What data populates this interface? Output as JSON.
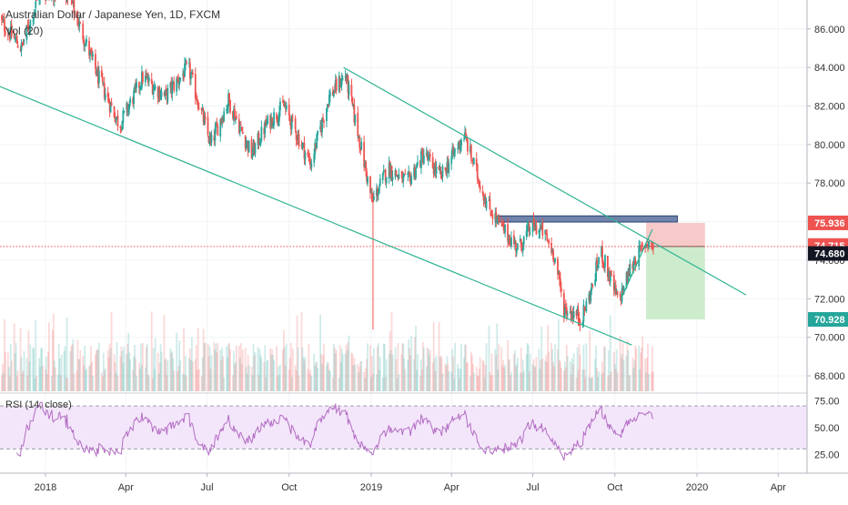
{
  "chart_title": "Australian Dollar / Japanese Yen, 1D, FXCM",
  "volume_label": "Vol (20)",
  "rsi_label": "RSI (14, close)",
  "colors": {
    "up": "#26a69a",
    "down": "#ef5350",
    "trendline": "#2eb392",
    "resistance_box": "#3f5a8f",
    "rsi_line": "#b36cc4",
    "rsi_band": "#f3e6fa",
    "stop_zone": "#f7c9c9",
    "target_zone": "#cdeccd",
    "current_price_line": "#ef5350"
  },
  "chart_data": {
    "type": "candlestick",
    "x_axis": {
      "ticks": [
        "2018",
        "Apr",
        "Jul",
        "Oct",
        "2019",
        "Apr",
        "Jul",
        "Oct",
        "2020",
        "Apr"
      ],
      "tick_dates": [
        "2018-01-01",
        "2018-04-01",
        "2018-07-01",
        "2018-10-01",
        "2019-01-01",
        "2019-04-01",
        "2019-07-01",
        "2019-10-01",
        "2020-01-01",
        "2020-04-01"
      ]
    },
    "y_axis": {
      "ticks": [
        "68.000",
        "70.000",
        "72.000",
        "74.000",
        "76.000",
        "78.000",
        "80.000",
        "82.000",
        "84.000",
        "86.000"
      ],
      "range": [
        67.2,
        87.5
      ]
    },
    "price_path": [
      {
        "date": "2017-11-10",
        "price": 86.5
      },
      {
        "date": "2017-12-05",
        "price": 85.0
      },
      {
        "date": "2017-12-25",
        "price": 87.8
      },
      {
        "date": "2018-01-25",
        "price": 88.0
      },
      {
        "date": "2018-03-01",
        "price": 83.5
      },
      {
        "date": "2018-03-25",
        "price": 81.0
      },
      {
        "date": "2018-04-20",
        "price": 83.5
      },
      {
        "date": "2018-05-15",
        "price": 82.5
      },
      {
        "date": "2018-06-10",
        "price": 84.0
      },
      {
        "date": "2018-07-05",
        "price": 80.0
      },
      {
        "date": "2018-07-25",
        "price": 82.3
      },
      {
        "date": "2018-08-20",
        "price": 79.5
      },
      {
        "date": "2018-09-05",
        "price": 81.0
      },
      {
        "date": "2018-09-25",
        "price": 82.0
      },
      {
        "date": "2018-10-25",
        "price": 79.0
      },
      {
        "date": "2018-11-15",
        "price": 82.5
      },
      {
        "date": "2018-12-03",
        "price": 83.6
      },
      {
        "date": "2018-12-20",
        "price": 80.0
      },
      {
        "date": "2019-01-02",
        "price": 77.0
      },
      {
        "date": "2019-01-20",
        "price": 78.8
      },
      {
        "date": "2019-02-10",
        "price": 78.0
      },
      {
        "date": "2019-03-01",
        "price": 79.5
      },
      {
        "date": "2019-03-20",
        "price": 78.3
      },
      {
        "date": "2019-04-15",
        "price": 80.5
      },
      {
        "date": "2019-05-10",
        "price": 77.0
      },
      {
        "date": "2019-05-25",
        "price": 75.8
      },
      {
        "date": "2019-06-15",
        "price": 74.6
      },
      {
        "date": "2019-06-30",
        "price": 75.8
      },
      {
        "date": "2019-07-12",
        "price": 75.5
      },
      {
        "date": "2019-07-25",
        "price": 74.3
      },
      {
        "date": "2019-08-05",
        "price": 71.5
      },
      {
        "date": "2019-08-25",
        "price": 71.0
      },
      {
        "date": "2019-09-05",
        "price": 72.5
      },
      {
        "date": "2019-09-15",
        "price": 74.5
      },
      {
        "date": "2019-09-30",
        "price": 72.5
      },
      {
        "date": "2019-10-05",
        "price": 71.8
      },
      {
        "date": "2019-10-20",
        "price": 73.8
      },
      {
        "date": "2019-11-07",
        "price": 75.0
      },
      {
        "date": "2019-11-13",
        "price": 74.7
      }
    ],
    "trendlines": [
      {
        "name": "upper-channel",
        "from": {
          "date": "2018-12-01",
          "price": 84.0
        },
        "to": {
          "date": "2020-02-25",
          "price": 72.2
        }
      },
      {
        "name": "lower-channel",
        "from": {
          "date": "2017-11-01",
          "price": 83.2
        },
        "to": {
          "date": "2019-10-20",
          "price": 69.6
        }
      }
    ],
    "resistance_zone": {
      "start": "2019-05-20",
      "end": "2019-12-10",
      "low": 75.98,
      "high": 76.3
    },
    "position": {
      "start": "2019-11-05",
      "end": "2020-01-10",
      "entry": 74.715,
      "stop": 75.936,
      "target": 70.928
    },
    "price_labels": [
      {
        "value": "75.936",
        "kind": "stop"
      },
      {
        "value": "74.715",
        "kind": "entry"
      },
      {
        "value": "74.680",
        "kind": "current"
      },
      {
        "value": "70.928",
        "kind": "target"
      }
    ],
    "rsi": {
      "ticks": [
        "25.00",
        "50.00",
        "75.00"
      ],
      "range": [
        10,
        82
      ],
      "upper": 70,
      "lower": 30
    }
  }
}
